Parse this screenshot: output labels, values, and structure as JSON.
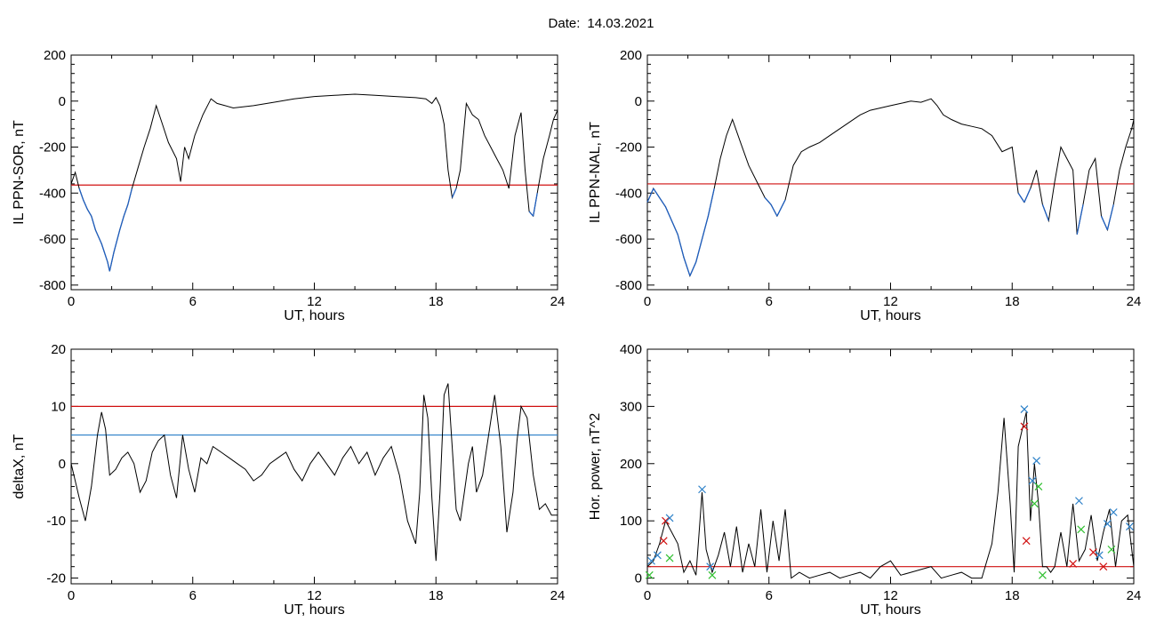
{
  "figure": {
    "date_label": "Date:",
    "date_value": "14.03.2021"
  },
  "colors": {
    "trace": "#000000",
    "below_threshold": "#1f5fbf",
    "red_line": "#d01010",
    "blue_line": "#2a7fc8",
    "green_mark": "#30c030"
  },
  "chart_data": [
    {
      "id": "sor",
      "type": "line",
      "xlabel": "UT, hours",
      "ylabel": "IL PPN-SOR, nT",
      "xlim": [
        0,
        24
      ],
      "ylim": [
        -820,
        200
      ],
      "xticks": [
        0,
        6,
        12,
        18,
        24
      ],
      "yticks": [
        -800,
        -600,
        -400,
        -200,
        0,
        200
      ],
      "threshold_red": -365,
      "highlight_below_threshold": true,
      "series": [
        {
          "x": [
            0,
            0.2,
            0.4,
            0.6,
            0.8,
            1.0,
            1.2,
            1.5,
            1.8,
            1.9,
            2.1,
            2.4,
            2.6,
            2.8,
            3.0,
            3.3,
            3.6,
            3.9,
            4.2,
            4.5,
            4.8,
            5.2,
            5.4,
            5.6,
            5.8,
            6.1,
            6.5,
            6.9,
            7.2,
            7.6,
            8.0,
            9.0,
            10.0,
            11.0,
            12.0,
            13.0,
            14.0,
            15.0,
            16.0,
            17.0,
            17.5,
            17.8,
            18.0,
            18.2,
            18.4,
            18.6,
            18.8,
            19.0,
            19.2,
            19.5,
            19.8,
            20.1,
            20.4,
            20.7,
            21.0,
            21.3,
            21.6,
            21.9,
            22.2,
            22.4,
            22.6,
            22.8,
            23.0,
            23.3,
            23.6,
            23.8,
            24.0
          ],
          "y": [
            -360,
            -310,
            -380,
            -430,
            -470,
            -500,
            -560,
            -620,
            -700,
            -740,
            -660,
            -560,
            -500,
            -450,
            -380,
            -290,
            -200,
            -120,
            -20,
            -100,
            -180,
            -250,
            -350,
            -200,
            -250,
            -150,
            -60,
            10,
            -10,
            -20,
            -30,
            -20,
            -5,
            10,
            20,
            25,
            30,
            25,
            20,
            15,
            10,
            -10,
            15,
            -20,
            -100,
            -300,
            -420,
            -380,
            -300,
            -10,
            -60,
            -80,
            -150,
            -200,
            -250,
            -300,
            -380,
            -150,
            -50,
            -300,
            -480,
            -500,
            -400,
            -250,
            -150,
            -80,
            -40
          ]
        }
      ]
    },
    {
      "id": "nal",
      "type": "line",
      "xlabel": "UT, hours",
      "ylabel": "IL PPN-NAL, nT",
      "xlim": [
        0,
        24
      ],
      "ylim": [
        -820,
        200
      ],
      "xticks": [
        0,
        6,
        12,
        18,
        24
      ],
      "yticks": [
        -800,
        -600,
        -400,
        -200,
        0,
        200
      ],
      "threshold_red": -360,
      "highlight_below_threshold": true,
      "series": [
        {
          "x": [
            0,
            0.3,
            0.6,
            0.9,
            1.2,
            1.5,
            1.8,
            2.1,
            2.4,
            2.7,
            3.0,
            3.3,
            3.6,
            3.9,
            4.2,
            4.6,
            5.0,
            5.4,
            5.8,
            6.1,
            6.4,
            6.8,
            7.2,
            7.6,
            8.0,
            8.5,
            9.0,
            9.5,
            10.0,
            10.5,
            11.0,
            11.5,
            12.0,
            12.5,
            13.0,
            13.5,
            14.0,
            14.3,
            14.6,
            15.0,
            15.5,
            16.0,
            16.5,
            17.0,
            17.5,
            18.0,
            18.3,
            18.6,
            18.9,
            19.2,
            19.5,
            19.8,
            20.1,
            20.4,
            20.7,
            21.0,
            21.2,
            21.5,
            21.8,
            22.1,
            22.4,
            22.7,
            23.0,
            23.3,
            23.6,
            23.9,
            24.0
          ],
          "y": [
            -440,
            -380,
            -420,
            -460,
            -520,
            -580,
            -680,
            -760,
            -700,
            -600,
            -500,
            -380,
            -250,
            -150,
            -80,
            -180,
            -280,
            -350,
            -420,
            -450,
            -500,
            -430,
            -280,
            -220,
            -200,
            -180,
            -150,
            -120,
            -90,
            -60,
            -40,
            -30,
            -20,
            -10,
            0,
            -5,
            10,
            -20,
            -60,
            -80,
            -100,
            -110,
            -120,
            -150,
            -220,
            -200,
            -400,
            -440,
            -380,
            -300,
            -450,
            -520,
            -350,
            -200,
            -250,
            -300,
            -580,
            -450,
            -300,
            -250,
            -500,
            -560,
            -450,
            -300,
            -200,
            -120,
            -80
          ]
        }
      ]
    },
    {
      "id": "deltax",
      "type": "line",
      "xlabel": "UT, hours",
      "ylabel": "deltaX, nT",
      "xlim": [
        0,
        24
      ],
      "ylim": [
        -21,
        20
      ],
      "xticks": [
        0,
        6,
        12,
        18,
        24
      ],
      "yticks": [
        -20,
        -10,
        0,
        10,
        20
      ],
      "threshold_red": 10,
      "threshold_blue": 5,
      "series": [
        {
          "x": [
            0,
            0.2,
            0.4,
            0.7,
            1.0,
            1.3,
            1.5,
            1.7,
            1.9,
            2.2,
            2.5,
            2.8,
            3.1,
            3.4,
            3.7,
            4.0,
            4.3,
            4.6,
            4.9,
            5.2,
            5.5,
            5.8,
            6.1,
            6.4,
            6.7,
            7.0,
            7.4,
            7.8,
            8.2,
            8.6,
            9.0,
            9.4,
            9.8,
            10.2,
            10.6,
            11.0,
            11.4,
            11.8,
            12.2,
            12.6,
            13.0,
            13.4,
            13.8,
            14.2,
            14.6,
            15.0,
            15.4,
            15.8,
            16.2,
            16.6,
            17.0,
            17.2,
            17.4,
            17.6,
            17.8,
            18.0,
            18.2,
            18.4,
            18.6,
            18.8,
            19.0,
            19.2,
            19.4,
            19.6,
            19.8,
            20.0,
            20.3,
            20.6,
            20.9,
            21.2,
            21.5,
            21.8,
            22.0,
            22.2,
            22.5,
            22.8,
            23.1,
            23.4,
            23.7,
            24.0
          ],
          "y": [
            0,
            -3,
            -6,
            -10,
            -4,
            5,
            9,
            6,
            -2,
            -1,
            1,
            2,
            0,
            -5,
            -3,
            2,
            4,
            5,
            -2,
            -6,
            5,
            -1,
            -5,
            1,
            0,
            3,
            2,
            1,
            0,
            -1,
            -3,
            -2,
            0,
            1,
            2,
            -1,
            -3,
            0,
            2,
            0,
            -2,
            1,
            3,
            0,
            2,
            -2,
            1,
            3,
            -2,
            -10,
            -14,
            -5,
            12,
            8,
            -6,
            -17,
            -5,
            12,
            14,
            3,
            -8,
            -10,
            -5,
            0,
            3,
            -5,
            -2,
            5,
            12,
            3,
            -12,
            -5,
            4,
            10,
            8,
            -2,
            -8,
            -7,
            -9,
            -9
          ]
        }
      ]
    },
    {
      "id": "power",
      "type": "line",
      "xlabel": "UT, hours",
      "ylabel": "Hor. power, nT^2",
      "xlim": [
        0,
        24
      ],
      "ylim": [
        -10,
        400
      ],
      "xticks": [
        0,
        6,
        12,
        18,
        24
      ],
      "yticks": [
        0,
        100,
        200,
        300,
        400
      ],
      "threshold_red": 20,
      "series": [
        {
          "x": [
            0,
            0.3,
            0.6,
            0.9,
            1.2,
            1.5,
            1.8,
            2.1,
            2.4,
            2.7,
            2.9,
            3.2,
            3.5,
            3.8,
            4.1,
            4.4,
            4.7,
            5.0,
            5.3,
            5.6,
            5.9,
            6.2,
            6.5,
            6.8,
            7.1,
            7.5,
            8.0,
            8.5,
            9.0,
            9.5,
            10.0,
            10.5,
            11.0,
            11.5,
            12.0,
            12.5,
            13.0,
            13.5,
            14.0,
            14.5,
            15.0,
            15.5,
            16.0,
            16.5,
            17.0,
            17.3,
            17.6,
            17.9,
            18.1,
            18.3,
            18.5,
            18.7,
            18.9,
            19.1,
            19.3,
            19.5,
            19.7,
            19.9,
            20.1,
            20.4,
            20.7,
            21.0,
            21.3,
            21.6,
            21.9,
            22.2,
            22.5,
            22.8,
            23.1,
            23.4,
            23.7,
            24.0
          ],
          "y": [
            20,
            30,
            60,
            100,
            80,
            60,
            10,
            30,
            5,
            150,
            50,
            10,
            40,
            80,
            20,
            90,
            10,
            60,
            20,
            120,
            10,
            100,
            30,
            120,
            0,
            10,
            0,
            5,
            10,
            0,
            5,
            10,
            0,
            20,
            30,
            5,
            10,
            15,
            20,
            0,
            5,
            10,
            0,
            0,
            60,
            150,
            280,
            130,
            10,
            230,
            260,
            290,
            100,
            200,
            130,
            20,
            20,
            10,
            20,
            80,
            20,
            130,
            30,
            50,
            110,
            30,
            80,
            120,
            20,
            100,
            110,
            20
          ]
        }
      ],
      "markers": [
        {
          "x": 0.2,
          "y": 30,
          "kind": "blue"
        },
        {
          "x": 0.5,
          "y": 40,
          "kind": "blue"
        },
        {
          "x": 0.9,
          "y": 100,
          "kind": "red"
        },
        {
          "x": 0.8,
          "y": 65,
          "kind": "red"
        },
        {
          "x": 1.1,
          "y": 105,
          "kind": "blue"
        },
        {
          "x": 1.1,
          "y": 35,
          "kind": "green"
        },
        {
          "x": 2.7,
          "y": 155,
          "kind": "blue"
        },
        {
          "x": 3.1,
          "y": 20,
          "kind": "blue"
        },
        {
          "x": 3.2,
          "y": 5,
          "kind": "green"
        },
        {
          "x": 18.6,
          "y": 295,
          "kind": "blue"
        },
        {
          "x": 18.6,
          "y": 265,
          "kind": "red"
        },
        {
          "x": 18.7,
          "y": 65,
          "kind": "red"
        },
        {
          "x": 19.0,
          "y": 170,
          "kind": "blue"
        },
        {
          "x": 19.2,
          "y": 205,
          "kind": "blue"
        },
        {
          "x": 19.1,
          "y": 130,
          "kind": "green"
        },
        {
          "x": 19.3,
          "y": 160,
          "kind": "green"
        },
        {
          "x": 21.3,
          "y": 135,
          "kind": "blue"
        },
        {
          "x": 21.4,
          "y": 85,
          "kind": "green"
        },
        {
          "x": 21.0,
          "y": 25,
          "kind": "red"
        },
        {
          "x": 22.0,
          "y": 45,
          "kind": "red"
        },
        {
          "x": 22.3,
          "y": 40,
          "kind": "blue"
        },
        {
          "x": 22.5,
          "y": 20,
          "kind": "red"
        },
        {
          "x": 22.7,
          "y": 95,
          "kind": "blue"
        },
        {
          "x": 23.0,
          "y": 115,
          "kind": "blue"
        },
        {
          "x": 22.9,
          "y": 50,
          "kind": "green"
        },
        {
          "x": 23.8,
          "y": 90,
          "kind": "blue"
        },
        {
          "x": 0.1,
          "y": 5,
          "kind": "green"
        },
        {
          "x": 19.5,
          "y": 5,
          "kind": "green"
        }
      ]
    }
  ]
}
